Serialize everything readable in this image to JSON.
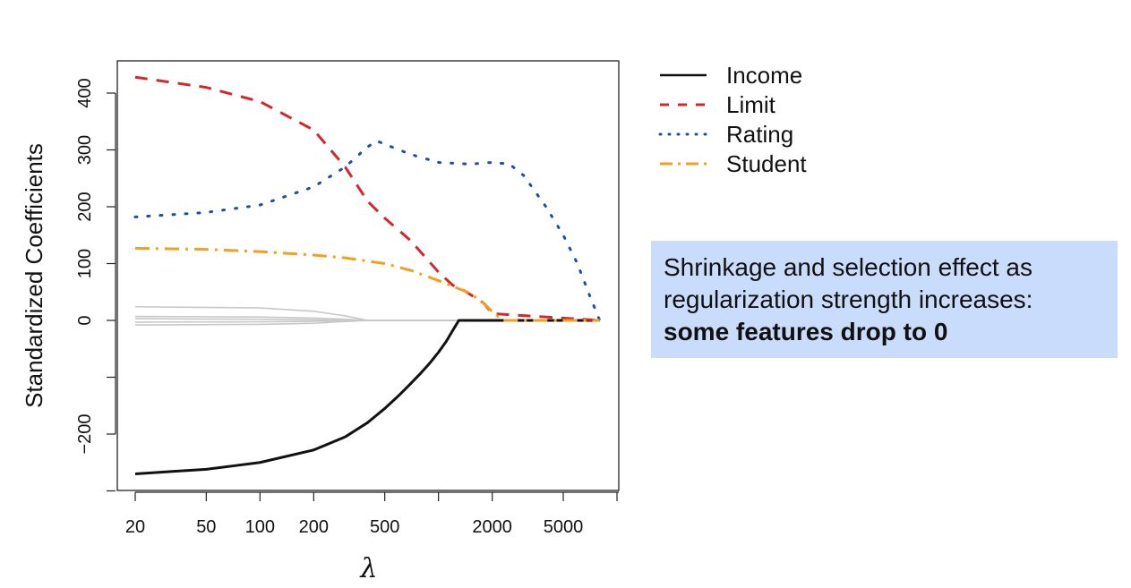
{
  "chart_data": {
    "type": "line",
    "ylabel": "Standardized Coefficients",
    "xlabel": "λ",
    "x_scale": "log",
    "xlim": [
      16,
      9000
    ],
    "ylim": [
      -270,
      455
    ],
    "x_ticks": [
      20,
      50,
      100,
      200,
      500,
      1000,
      2000,
      5000,
      10000
    ],
    "x_tick_labels": [
      "20",
      "50",
      "100",
      "200",
      "500",
      "",
      "2000",
      "5000",
      ""
    ],
    "y_ticks": [
      -300,
      -200,
      -100,
      0,
      100,
      200,
      300,
      400
    ],
    "y_tick_labels": [
      "",
      "−200",
      "",
      "0",
      "100",
      "200",
      "300",
      "400"
    ],
    "legend_position": "top-right outside",
    "series": [
      {
        "name": "Income",
        "color": "#111111",
        "style": "solid",
        "x": [
          20,
          50,
          100,
          200,
          300,
          400,
          500,
          600,
          700,
          800,
          900,
          1000,
          1100,
          1200,
          1300,
          8000
        ],
        "y": [
          -270,
          -262,
          -250,
          -228,
          -205,
          -180,
          -155,
          -132,
          -111,
          -92,
          -74,
          -56,
          -38,
          -18,
          0,
          0
        ]
      },
      {
        "name": "Limit",
        "color": "#d62728",
        "style": "dashed",
        "x": [
          20,
          50,
          100,
          200,
          300,
          400,
          500,
          700,
          1000,
          1200,
          1400,
          1800,
          2000,
          8000
        ],
        "y": [
          428,
          410,
          385,
          335,
          270,
          210,
          180,
          140,
          85,
          62,
          52,
          30,
          12,
          0
        ]
      },
      {
        "name": "Rating",
        "color": "#1f4ea8",
        "style": "dotted",
        "x": [
          20,
          50,
          100,
          200,
          300,
          400,
          450,
          500,
          700,
          1000,
          1500,
          2000,
          2500,
          3000,
          4000,
          5000,
          6000,
          7000,
          8000
        ],
        "y": [
          182,
          190,
          203,
          235,
          270,
          305,
          316,
          310,
          292,
          278,
          275,
          278,
          275,
          255,
          200,
          150,
          100,
          45,
          0
        ]
      },
      {
        "name": "Student",
        "color": "#f0a020",
        "style": "dashdot",
        "x": [
          20,
          50,
          100,
          200,
          300,
          500,
          700,
          1000,
          1200,
          1500,
          1800,
          2000,
          2300,
          8000
        ],
        "y": [
          127,
          125,
          121,
          115,
          110,
          100,
          88,
          70,
          60,
          48,
          30,
          15,
          0,
          0
        ]
      },
      {
        "color": "#c8c8c8",
        "style": "solid",
        "x": [
          20,
          100,
          200,
          300,
          400,
          8000
        ],
        "y": [
          24,
          22,
          16,
          8,
          0,
          0
        ]
      },
      {
        "color": "#c8c8c8",
        "style": "solid",
        "x": [
          20,
          100,
          200,
          300,
          400,
          8000
        ],
        "y": [
          7,
          6,
          4,
          2,
          0,
          0
        ]
      },
      {
        "color": "#c8c8c8",
        "style": "solid",
        "x": [
          20,
          100,
          200,
          300,
          400,
          8000
        ],
        "y": [
          3,
          2,
          1,
          0.5,
          0,
          0
        ]
      },
      {
        "color": "#c8c8c8",
        "style": "solid",
        "x": [
          20,
          100,
          200,
          300,
          400,
          8000
        ],
        "y": [
          -3,
          -2.5,
          -1.5,
          -0.5,
          0,
          0
        ]
      },
      {
        "color": "#c8c8c8",
        "style": "solid",
        "x": [
          20,
          100,
          200,
          300,
          400,
          8000
        ],
        "y": [
          -8,
          -7,
          -5,
          -2,
          0,
          0
        ]
      }
    ]
  },
  "callout": {
    "line1": "Shrinkage and selection effect as",
    "line2": "regularization strength increases:",
    "line3": "some features drop to 0"
  }
}
